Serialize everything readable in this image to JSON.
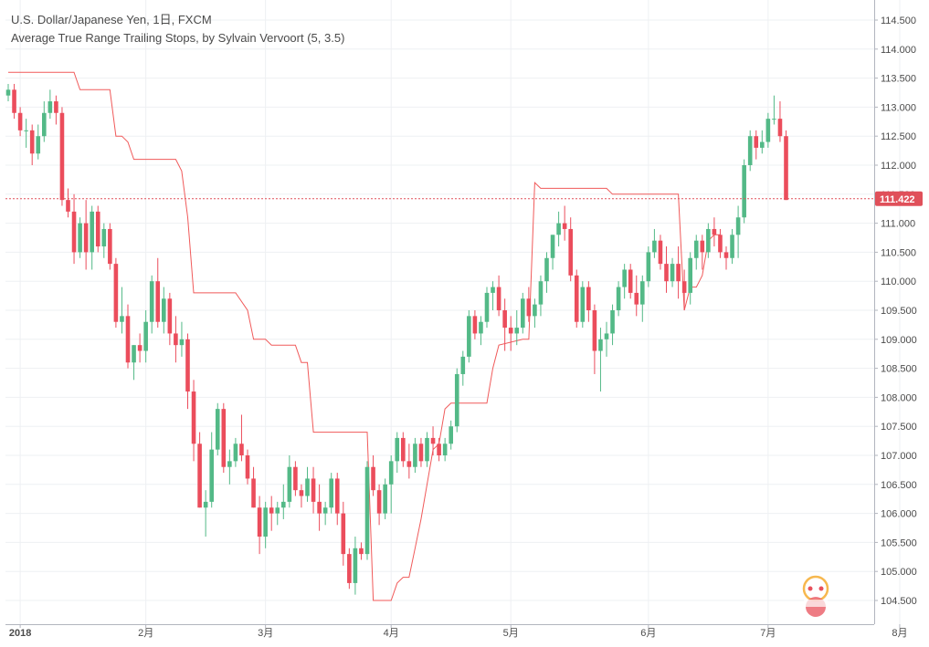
{
  "header": {
    "symbol": "U.S. Dollar/Japanese Yen, 1日, FXCM",
    "indicator": "Average True Range Trailing Stops, by Sylvain Vervoort (5, 3.5)"
  },
  "chart_data": {
    "type": "candlestick",
    "ylim": [
      104.2,
      114.7
    ],
    "y_ticks": [
      "114.500",
      "114.000",
      "113.500",
      "113.000",
      "112.500",
      "112.000",
      "111.500",
      "111.000",
      "110.500",
      "110.000",
      "109.500",
      "109.000",
      "108.500",
      "108.000",
      "107.500",
      "107.000",
      "106.500",
      "106.000",
      "105.500",
      "105.000",
      "104.500"
    ],
    "x_ticks": [
      {
        "label": "2018",
        "index": 2
      },
      {
        "label": "2月",
        "index": 23
      },
      {
        "label": "3月",
        "index": 43
      },
      {
        "label": "4月",
        "index": 64
      },
      {
        "label": "5月",
        "index": 84
      },
      {
        "label": "6月",
        "index": 107
      },
      {
        "label": "7月",
        "index": 127
      },
      {
        "label": "8月",
        "index": 149
      }
    ],
    "last_price": {
      "value": 111.422,
      "label": "111.422"
    },
    "colors": {
      "up": "#53b987",
      "down": "#eb4d5c",
      "stop_line": "#f05a5a",
      "price_line": "#e0505a",
      "grid": "#eef0f3",
      "axis_text": "#4a4a4a"
    },
    "candles": [
      [
        113.2,
        113.4,
        113.1,
        113.3
      ],
      [
        113.3,
        113.4,
        112.8,
        112.9
      ],
      [
        112.9,
        113.0,
        112.5,
        112.6
      ],
      [
        112.6,
        112.8,
        112.3,
        112.6
      ],
      [
        112.6,
        112.7,
        112.0,
        112.2
      ],
      [
        112.2,
        112.7,
        112.1,
        112.5
      ],
      [
        112.5,
        113.1,
        112.4,
        112.9
      ],
      [
        112.9,
        113.3,
        112.8,
        113.1
      ],
      [
        113.1,
        113.2,
        112.7,
        112.9
      ],
      [
        112.9,
        113.0,
        111.3,
        111.4
      ],
      [
        111.4,
        111.6,
        111.1,
        111.2
      ],
      [
        111.2,
        111.5,
        110.3,
        110.5
      ],
      [
        110.5,
        111.1,
        110.4,
        111.0
      ],
      [
        111.0,
        111.4,
        110.2,
        110.5
      ],
      [
        110.5,
        111.3,
        110.2,
        111.2
      ],
      [
        111.2,
        111.3,
        110.5,
        110.6
      ],
      [
        110.6,
        111.0,
        110.4,
        110.9
      ],
      [
        110.9,
        111.0,
        110.2,
        110.3
      ],
      [
        110.3,
        110.4,
        109.2,
        109.3
      ],
      [
        109.3,
        109.9,
        109.1,
        109.4
      ],
      [
        109.4,
        109.6,
        108.5,
        108.6
      ],
      [
        108.6,
        108.9,
        108.3,
        108.9
      ],
      [
        108.9,
        109.1,
        108.6,
        108.8
      ],
      [
        108.8,
        109.5,
        108.6,
        109.3
      ],
      [
        109.3,
        110.1,
        109.1,
        110.0
      ],
      [
        110.0,
        110.4,
        109.2,
        109.3
      ],
      [
        109.3,
        109.9,
        109.1,
        109.7
      ],
      [
        109.7,
        109.8,
        108.9,
        109.1
      ],
      [
        109.1,
        109.4,
        108.6,
        108.9
      ],
      [
        108.9,
        109.3,
        108.7,
        109.0
      ],
      [
        109.0,
        109.1,
        107.8,
        108.1
      ],
      [
        108.1,
        108.3,
        106.9,
        107.2
      ],
      [
        107.2,
        107.4,
        106.1,
        106.1
      ],
      [
        106.1,
        106.4,
        105.6,
        106.2
      ],
      [
        106.2,
        107.4,
        106.1,
        107.1
      ],
      [
        107.1,
        107.9,
        107.0,
        107.8
      ],
      [
        107.8,
        107.9,
        106.7,
        106.8
      ],
      [
        106.8,
        107.1,
        106.5,
        106.9
      ],
      [
        106.9,
        107.3,
        106.8,
        107.2
      ],
      [
        107.2,
        107.7,
        106.9,
        107.0
      ],
      [
        107.0,
        107.1,
        106.5,
        106.6
      ],
      [
        106.6,
        106.8,
        106.1,
        106.1
      ],
      [
        106.1,
        106.3,
        105.3,
        105.6
      ],
      [
        105.6,
        106.2,
        105.4,
        106.1
      ],
      [
        106.1,
        106.3,
        105.7,
        106.0
      ],
      [
        106.0,
        106.2,
        105.8,
        106.1
      ],
      [
        106.1,
        106.5,
        105.9,
        106.2
      ],
      [
        106.2,
        107.0,
        106.1,
        106.8
      ],
      [
        106.8,
        106.9,
        106.3,
        106.4
      ],
      [
        106.4,
        106.5,
        106.1,
        106.3
      ],
      [
        106.3,
        106.8,
        106.2,
        106.6
      ],
      [
        106.6,
        106.8,
        106.0,
        106.2
      ],
      [
        106.2,
        106.5,
        105.7,
        106.0
      ],
      [
        106.0,
        106.2,
        105.8,
        106.1
      ],
      [
        106.1,
        106.7,
        106.0,
        106.6
      ],
      [
        106.6,
        106.7,
        105.8,
        106.0
      ],
      [
        106.0,
        106.2,
        105.1,
        105.3
      ],
      [
        105.3,
        105.4,
        104.7,
        104.8
      ],
      [
        104.8,
        105.6,
        104.6,
        105.4
      ],
      [
        105.4,
        105.5,
        105.2,
        105.3
      ],
      [
        105.3,
        106.9,
        105.2,
        106.8
      ],
      [
        106.8,
        107.0,
        106.3,
        106.4
      ],
      [
        106.4,
        106.5,
        105.8,
        106.0
      ],
      [
        106.0,
        106.6,
        105.9,
        106.5
      ],
      [
        106.5,
        107.0,
        106.0,
        106.9
      ],
      [
        106.9,
        107.4,
        106.7,
        107.3
      ],
      [
        107.3,
        107.4,
        106.8,
        106.9
      ],
      [
        106.9,
        107.2,
        106.6,
        106.8
      ],
      [
        106.8,
        107.3,
        106.7,
        107.2
      ],
      [
        107.2,
        107.3,
        106.8,
        106.9
      ],
      [
        106.9,
        107.4,
        106.8,
        107.3
      ],
      [
        107.3,
        107.5,
        107.0,
        107.2
      ],
      [
        107.2,
        107.3,
        106.9,
        107.0
      ],
      [
        107.0,
        107.3,
        106.9,
        107.2
      ],
      [
        107.2,
        107.6,
        107.1,
        107.5
      ],
      [
        107.5,
        108.5,
        107.4,
        108.4
      ],
      [
        108.4,
        108.8,
        108.2,
        108.7
      ],
      [
        108.7,
        109.5,
        108.6,
        109.4
      ],
      [
        109.4,
        109.5,
        109.0,
        109.1
      ],
      [
        109.1,
        109.4,
        108.9,
        109.3
      ],
      [
        109.3,
        109.9,
        109.2,
        109.8
      ],
      [
        109.8,
        110.0,
        109.5,
        109.9
      ],
      [
        109.9,
        110.1,
        109.4,
        109.5
      ],
      [
        109.5,
        109.7,
        108.8,
        109.2
      ],
      [
        109.2,
        109.4,
        108.8,
        109.1
      ],
      [
        109.1,
        109.5,
        108.9,
        109.2
      ],
      [
        109.2,
        109.8,
        109.1,
        109.7
      ],
      [
        109.7,
        109.9,
        109.3,
        109.4
      ],
      [
        109.4,
        109.7,
        109.2,
        109.6
      ],
      [
        109.6,
        110.1,
        109.4,
        110.0
      ],
      [
        110.0,
        110.5,
        109.8,
        110.4
      ],
      [
        110.4,
        110.8,
        110.2,
        110.8
      ],
      [
        110.8,
        111.2,
        110.6,
        111.0
      ],
      [
        111.0,
        111.3,
        110.7,
        110.9
      ],
      [
        110.9,
        111.1,
        110.0,
        110.1
      ],
      [
        110.1,
        110.2,
        109.2,
        109.3
      ],
      [
        109.3,
        110.0,
        109.2,
        109.9
      ],
      [
        109.9,
        110.0,
        109.3,
        109.5
      ],
      [
        109.5,
        109.6,
        108.4,
        108.8
      ],
      [
        108.8,
        109.2,
        108.1,
        109.0
      ],
      [
        109.0,
        109.3,
        108.7,
        109.1
      ],
      [
        109.1,
        109.6,
        108.9,
        109.5
      ],
      [
        109.5,
        110.0,
        109.4,
        109.9
      ],
      [
        109.9,
        110.3,
        109.7,
        110.2
      ],
      [
        110.2,
        110.3,
        109.7,
        109.8
      ],
      [
        109.8,
        110.1,
        109.4,
        109.6
      ],
      [
        109.6,
        110.1,
        109.3,
        110.0
      ],
      [
        110.0,
        110.6,
        109.9,
        110.5
      ],
      [
        110.5,
        110.9,
        110.4,
        110.7
      ],
      [
        110.7,
        110.8,
        110.2,
        110.3
      ],
      [
        110.3,
        110.6,
        109.8,
        110.0
      ],
      [
        110.0,
        110.4,
        109.9,
        110.3
      ],
      [
        110.3,
        110.6,
        109.7,
        110.0
      ],
      [
        110.0,
        110.2,
        109.5,
        109.8
      ],
      [
        109.8,
        110.5,
        109.6,
        110.4
      ],
      [
        110.4,
        110.8,
        110.2,
        110.7
      ],
      [
        110.7,
        110.8,
        110.2,
        110.5
      ],
      [
        110.5,
        111.0,
        110.4,
        110.9
      ],
      [
        110.9,
        111.1,
        110.6,
        110.8
      ],
      [
        110.8,
        110.9,
        110.4,
        110.5
      ],
      [
        110.5,
        110.6,
        110.2,
        110.4
      ],
      [
        110.4,
        110.9,
        110.3,
        110.8
      ],
      [
        110.8,
        111.3,
        110.4,
        111.1
      ],
      [
        111.1,
        112.1,
        111.0,
        112.0
      ],
      [
        112.0,
        112.6,
        111.9,
        112.5
      ],
      [
        112.5,
        112.6,
        112.1,
        112.3
      ],
      [
        112.3,
        112.6,
        112.2,
        112.4
      ],
      [
        112.4,
        112.9,
        112.3,
        112.8
      ],
      [
        112.8,
        113.2,
        112.7,
        112.8
      ],
      [
        112.8,
        113.1,
        112.4,
        112.5
      ],
      [
        112.5,
        112.6,
        111.4,
        111.4
      ]
    ],
    "trailing_stop": [
      [
        0,
        113.6
      ],
      [
        11,
        113.6
      ],
      [
        12,
        113.3
      ],
      [
        17,
        113.3
      ],
      [
        18,
        112.5
      ],
      [
        19,
        112.5
      ],
      [
        20,
        112.4
      ],
      [
        21,
        112.1
      ],
      [
        28,
        112.1
      ],
      [
        29,
        111.9
      ],
      [
        30,
        111.1
      ],
      [
        31,
        109.8
      ],
      [
        38,
        109.8
      ],
      [
        40,
        109.5
      ],
      [
        41,
        109.0
      ],
      [
        43,
        109.0
      ],
      [
        44,
        108.9
      ],
      [
        48,
        108.9
      ],
      [
        49,
        108.6
      ],
      [
        50,
        108.6
      ],
      [
        51,
        107.4
      ],
      [
        59,
        107.4
      ],
      [
        60,
        107.4
      ],
      [
        61,
        104.5
      ],
      [
        63,
        104.5
      ],
      [
        64,
        104.5
      ],
      [
        65,
        104.8
      ],
      [
        66,
        104.9
      ],
      [
        67,
        104.9
      ],
      [
        68,
        105.4
      ],
      [
        69,
        105.9
      ],
      [
        70,
        106.5
      ],
      [
        71,
        107.1
      ],
      [
        72,
        107.2
      ],
      [
        73,
        107.8
      ],
      [
        74,
        107.9
      ],
      [
        75,
        107.9
      ],
      [
        80,
        107.9
      ],
      [
        81,
        108.5
      ],
      [
        82,
        108.9
      ],
      [
        86,
        109.0
      ],
      [
        87,
        109.0
      ],
      [
        88,
        111.7
      ],
      [
        89,
        111.6
      ],
      [
        100,
        111.6
      ],
      [
        101,
        111.5
      ],
      [
        107,
        111.5
      ],
      [
        108,
        111.5
      ],
      [
        112,
        111.5
      ],
      [
        113,
        109.5
      ],
      [
        114,
        109.9
      ],
      [
        115,
        109.9
      ],
      [
        116,
        110.1
      ],
      [
        117,
        110.7
      ],
      [
        118,
        110.8
      ],
      [
        119,
        110.8
      ]
    ]
  }
}
